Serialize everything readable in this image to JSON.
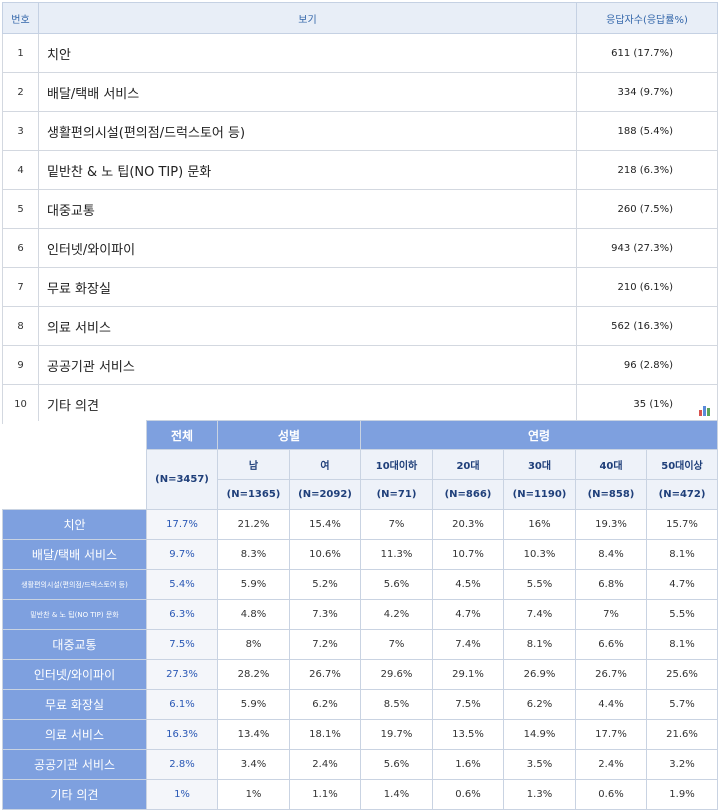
{
  "options_table": {
    "headers": {
      "no": "번호",
      "option": "보기",
      "responses": "응답자수(응답률%)"
    },
    "rows": [
      {
        "no": "1",
        "option": "치안",
        "responses": "611 (17.7%)"
      },
      {
        "no": "2",
        "option": "배달/택배 서비스",
        "responses": "334 (9.7%)"
      },
      {
        "no": "3",
        "option": "생활편의시설(편의점/드럭스토어 등)",
        "responses": "188 (5.4%)"
      },
      {
        "no": "4",
        "option": "밑반찬 & 노 팁(NO TIP) 문화",
        "responses": "218 (6.3%)"
      },
      {
        "no": "5",
        "option": "대중교통",
        "responses": "260 (7.5%)"
      },
      {
        "no": "6",
        "option": "인터넷/와이파이",
        "responses": "943 (27.3%)"
      },
      {
        "no": "7",
        "option": "무료 화장실",
        "responses": "210 (6.1%)"
      },
      {
        "no": "8",
        "option": "의료 서비스",
        "responses": "562 (16.3%)"
      },
      {
        "no": "9",
        "option": "공공기관 서비스",
        "responses": "96 (2.8%)"
      },
      {
        "no": "10",
        "option": "기타 의견",
        "responses": "35 (1%)"
      }
    ]
  },
  "chart_icon": "bar-chart-icon",
  "cross_table": {
    "total_label": "전체",
    "total_n": "(N=3457)",
    "gender_label": "성별",
    "age_label": "연령",
    "gender": [
      {
        "label": "남",
        "n": "(N=1365)"
      },
      {
        "label": "여",
        "n": "(N=2092)"
      }
    ],
    "age": [
      {
        "label": "10대이하",
        "n": "(N=71)"
      },
      {
        "label": "20대",
        "n": "(N=866)"
      },
      {
        "label": "30대",
        "n": "(N=1190)"
      },
      {
        "label": "40대",
        "n": "(N=858)"
      },
      {
        "label": "50대이상",
        "n": "(N=472)"
      }
    ],
    "rows": [
      {
        "label": "치안",
        "total": "17.7%",
        "cells": [
          "21.2%",
          "15.4%",
          "7%",
          "20.3%",
          "16%",
          "19.3%",
          "15.7%"
        ]
      },
      {
        "label": "배달/택배 서비스",
        "total": "9.7%",
        "cells": [
          "8.3%",
          "10.6%",
          "11.3%",
          "10.7%",
          "10.3%",
          "8.4%",
          "8.1%"
        ]
      },
      {
        "label": "생활편의시설(편의점/드럭스토어 등)",
        "total": "5.4%",
        "cells": [
          "5.9%",
          "5.2%",
          "5.6%",
          "4.5%",
          "5.5%",
          "6.8%",
          "4.7%"
        ]
      },
      {
        "label": "밑반찬 & 노 팁(NO TIP) 문화",
        "total": "6.3%",
        "cells": [
          "4.8%",
          "7.3%",
          "4.2%",
          "4.7%",
          "7.4%",
          "7%",
          "5.5%"
        ]
      },
      {
        "label": "대중교통",
        "total": "7.5%",
        "cells": [
          "8%",
          "7.2%",
          "7%",
          "7.4%",
          "8.1%",
          "6.6%",
          "8.1%"
        ]
      },
      {
        "label": "인터넷/와이파이",
        "total": "27.3%",
        "cells": [
          "28.2%",
          "26.7%",
          "29.6%",
          "29.1%",
          "26.9%",
          "26.7%",
          "25.6%"
        ]
      },
      {
        "label": "무료 화장실",
        "total": "6.1%",
        "cells": [
          "5.9%",
          "6.2%",
          "8.5%",
          "7.5%",
          "6.2%",
          "4.4%",
          "5.7%"
        ]
      },
      {
        "label": "의료 서비스",
        "total": "16.3%",
        "cells": [
          "13.4%",
          "18.1%",
          "19.7%",
          "13.5%",
          "14.9%",
          "17.7%",
          "21.6%"
        ]
      },
      {
        "label": "공공기관 서비스",
        "total": "2.8%",
        "cells": [
          "3.4%",
          "2.4%",
          "5.6%",
          "1.6%",
          "3.5%",
          "2.4%",
          "3.2%"
        ]
      },
      {
        "label": "기타 의견",
        "total": "1%",
        "cells": [
          "1%",
          "1.1%",
          "1.4%",
          "0.6%",
          "1.3%",
          "0.6%",
          "1.9%"
        ]
      }
    ]
  }
}
